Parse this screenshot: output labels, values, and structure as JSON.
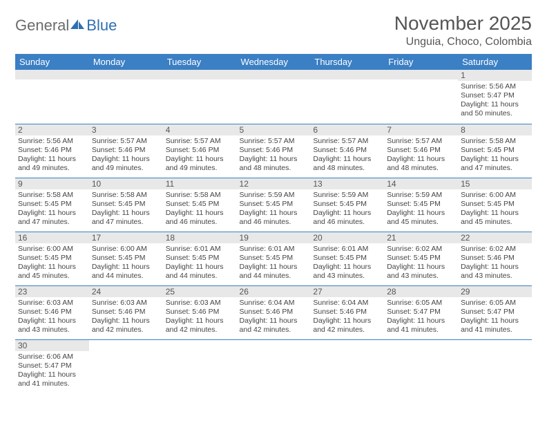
{
  "logo": {
    "text1": "General",
    "text2": "Blue"
  },
  "title": "November 2025",
  "location": "Unguia, Choco, Colombia",
  "colors": {
    "header_bg": "#3b7fc4",
    "header_fg": "#ffffff",
    "daynum_bg": "#e8e8e8",
    "rule": "#3b7fc4",
    "text": "#444444",
    "logo_blue": "#2f6fb0"
  },
  "weekdays": [
    "Sunday",
    "Monday",
    "Tuesday",
    "Wednesday",
    "Thursday",
    "Friday",
    "Saturday"
  ],
  "cells": [
    {
      "n": "",
      "sr": "",
      "ss": "",
      "dl": ""
    },
    {
      "n": "",
      "sr": "",
      "ss": "",
      "dl": ""
    },
    {
      "n": "",
      "sr": "",
      "ss": "",
      "dl": ""
    },
    {
      "n": "",
      "sr": "",
      "ss": "",
      "dl": ""
    },
    {
      "n": "",
      "sr": "",
      "ss": "",
      "dl": ""
    },
    {
      "n": "",
      "sr": "",
      "ss": "",
      "dl": ""
    },
    {
      "n": "1",
      "sr": "Sunrise: 5:56 AM",
      "ss": "Sunset: 5:47 PM",
      "dl": "Daylight: 11 hours and 50 minutes."
    },
    {
      "n": "2",
      "sr": "Sunrise: 5:56 AM",
      "ss": "Sunset: 5:46 PM",
      "dl": "Daylight: 11 hours and 49 minutes."
    },
    {
      "n": "3",
      "sr": "Sunrise: 5:57 AM",
      "ss": "Sunset: 5:46 PM",
      "dl": "Daylight: 11 hours and 49 minutes."
    },
    {
      "n": "4",
      "sr": "Sunrise: 5:57 AM",
      "ss": "Sunset: 5:46 PM",
      "dl": "Daylight: 11 hours and 49 minutes."
    },
    {
      "n": "5",
      "sr": "Sunrise: 5:57 AM",
      "ss": "Sunset: 5:46 PM",
      "dl": "Daylight: 11 hours and 48 minutes."
    },
    {
      "n": "6",
      "sr": "Sunrise: 5:57 AM",
      "ss": "Sunset: 5:46 PM",
      "dl": "Daylight: 11 hours and 48 minutes."
    },
    {
      "n": "7",
      "sr": "Sunrise: 5:57 AM",
      "ss": "Sunset: 5:46 PM",
      "dl": "Daylight: 11 hours and 48 minutes."
    },
    {
      "n": "8",
      "sr": "Sunrise: 5:58 AM",
      "ss": "Sunset: 5:45 PM",
      "dl": "Daylight: 11 hours and 47 minutes."
    },
    {
      "n": "9",
      "sr": "Sunrise: 5:58 AM",
      "ss": "Sunset: 5:45 PM",
      "dl": "Daylight: 11 hours and 47 minutes."
    },
    {
      "n": "10",
      "sr": "Sunrise: 5:58 AM",
      "ss": "Sunset: 5:45 PM",
      "dl": "Daylight: 11 hours and 47 minutes."
    },
    {
      "n": "11",
      "sr": "Sunrise: 5:58 AM",
      "ss": "Sunset: 5:45 PM",
      "dl": "Daylight: 11 hours and 46 minutes."
    },
    {
      "n": "12",
      "sr": "Sunrise: 5:59 AM",
      "ss": "Sunset: 5:45 PM",
      "dl": "Daylight: 11 hours and 46 minutes."
    },
    {
      "n": "13",
      "sr": "Sunrise: 5:59 AM",
      "ss": "Sunset: 5:45 PM",
      "dl": "Daylight: 11 hours and 46 minutes."
    },
    {
      "n": "14",
      "sr": "Sunrise: 5:59 AM",
      "ss": "Sunset: 5:45 PM",
      "dl": "Daylight: 11 hours and 45 minutes."
    },
    {
      "n": "15",
      "sr": "Sunrise: 6:00 AM",
      "ss": "Sunset: 5:45 PM",
      "dl": "Daylight: 11 hours and 45 minutes."
    },
    {
      "n": "16",
      "sr": "Sunrise: 6:00 AM",
      "ss": "Sunset: 5:45 PM",
      "dl": "Daylight: 11 hours and 45 minutes."
    },
    {
      "n": "17",
      "sr": "Sunrise: 6:00 AM",
      "ss": "Sunset: 5:45 PM",
      "dl": "Daylight: 11 hours and 44 minutes."
    },
    {
      "n": "18",
      "sr": "Sunrise: 6:01 AM",
      "ss": "Sunset: 5:45 PM",
      "dl": "Daylight: 11 hours and 44 minutes."
    },
    {
      "n": "19",
      "sr": "Sunrise: 6:01 AM",
      "ss": "Sunset: 5:45 PM",
      "dl": "Daylight: 11 hours and 44 minutes."
    },
    {
      "n": "20",
      "sr": "Sunrise: 6:01 AM",
      "ss": "Sunset: 5:45 PM",
      "dl": "Daylight: 11 hours and 43 minutes."
    },
    {
      "n": "21",
      "sr": "Sunrise: 6:02 AM",
      "ss": "Sunset: 5:45 PM",
      "dl": "Daylight: 11 hours and 43 minutes."
    },
    {
      "n": "22",
      "sr": "Sunrise: 6:02 AM",
      "ss": "Sunset: 5:46 PM",
      "dl": "Daylight: 11 hours and 43 minutes."
    },
    {
      "n": "23",
      "sr": "Sunrise: 6:03 AM",
      "ss": "Sunset: 5:46 PM",
      "dl": "Daylight: 11 hours and 43 minutes."
    },
    {
      "n": "24",
      "sr": "Sunrise: 6:03 AM",
      "ss": "Sunset: 5:46 PM",
      "dl": "Daylight: 11 hours and 42 minutes."
    },
    {
      "n": "25",
      "sr": "Sunrise: 6:03 AM",
      "ss": "Sunset: 5:46 PM",
      "dl": "Daylight: 11 hours and 42 minutes."
    },
    {
      "n": "26",
      "sr": "Sunrise: 6:04 AM",
      "ss": "Sunset: 5:46 PM",
      "dl": "Daylight: 11 hours and 42 minutes."
    },
    {
      "n": "27",
      "sr": "Sunrise: 6:04 AM",
      "ss": "Sunset: 5:46 PM",
      "dl": "Daylight: 11 hours and 42 minutes."
    },
    {
      "n": "28",
      "sr": "Sunrise: 6:05 AM",
      "ss": "Sunset: 5:47 PM",
      "dl": "Daylight: 11 hours and 41 minutes."
    },
    {
      "n": "29",
      "sr": "Sunrise: 6:05 AM",
      "ss": "Sunset: 5:47 PM",
      "dl": "Daylight: 11 hours and 41 minutes."
    },
    {
      "n": "30",
      "sr": "Sunrise: 6:06 AM",
      "ss": "Sunset: 5:47 PM",
      "dl": "Daylight: 11 hours and 41 minutes."
    },
    {
      "n": "",
      "sr": "",
      "ss": "",
      "dl": ""
    },
    {
      "n": "",
      "sr": "",
      "ss": "",
      "dl": ""
    },
    {
      "n": "",
      "sr": "",
      "ss": "",
      "dl": ""
    },
    {
      "n": "",
      "sr": "",
      "ss": "",
      "dl": ""
    },
    {
      "n": "",
      "sr": "",
      "ss": "",
      "dl": ""
    },
    {
      "n": "",
      "sr": "",
      "ss": "",
      "dl": ""
    }
  ]
}
